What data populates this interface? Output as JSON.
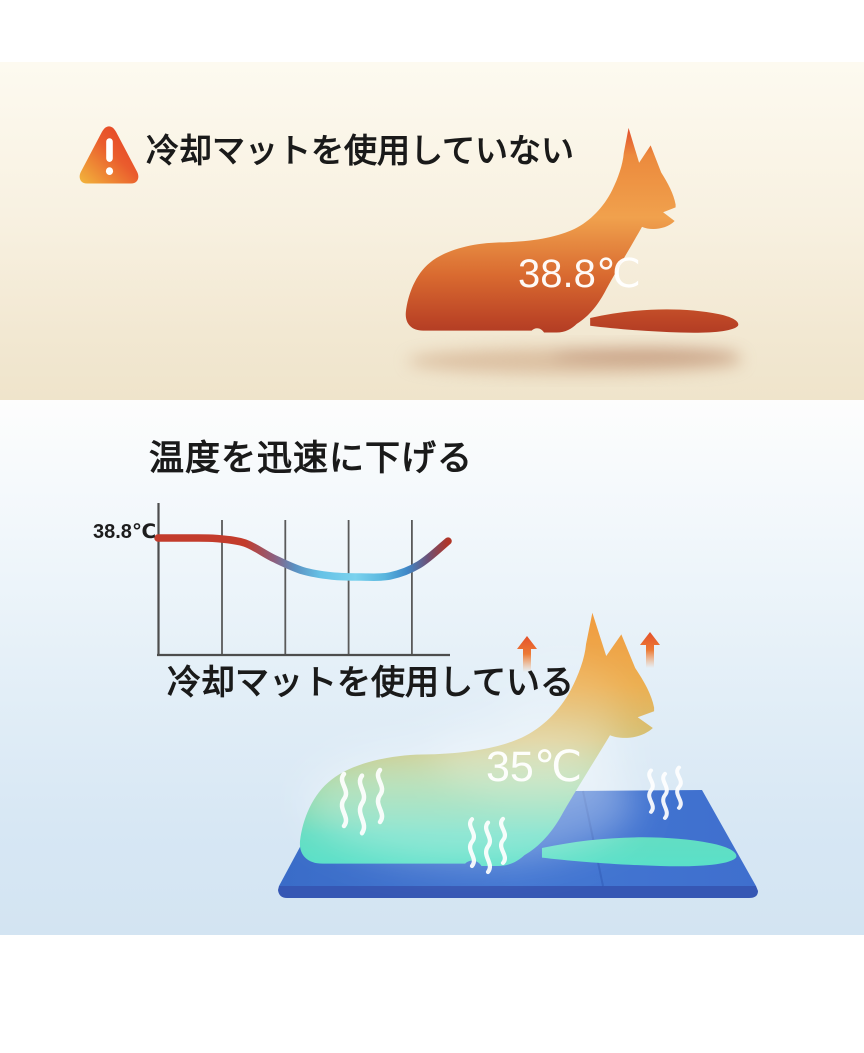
{
  "page": {
    "background": "#ffffff"
  },
  "top_section": {
    "label": "冷却マットを使用していない",
    "dog_temperature": "38.8℃",
    "background_gradient": [
      "#fdfaf0",
      "#efe4cb"
    ],
    "warning_icon": {
      "glyph": "!",
      "colors": [
        "#f2b63c",
        "#e33d24"
      ]
    },
    "dog_gradient": [
      "#e0462b",
      "#ec8a3d",
      "#f0a14d",
      "#a83322"
    ]
  },
  "bottom_section": {
    "title": "温度を迅速に下げる",
    "label": "冷却マットを使用している",
    "dog_temperature": "35℃",
    "background_gradient": [
      "#fdfdfd",
      "#d3e4f2"
    ],
    "dog_gradient": [
      "#f19a3e",
      "#d3c176",
      "#55e2cc"
    ],
    "mat_color": "#4274d0",
    "steam_color": "#ffffff",
    "heat_arrow_color": "#e4512a"
  },
  "chart_data": {
    "type": "line",
    "title": "温度を迅速に下げる",
    "y_axis_annotation": "38.8℃",
    "x": [
      0,
      1,
      2,
      3,
      4,
      5,
      6,
      7,
      8,
      9,
      10
    ],
    "values": [
      38.8,
      38.8,
      38.75,
      38.3,
      36.8,
      35.6,
      35.1,
      35.0,
      35.1,
      36.2,
      38.5
    ],
    "xlabel": "",
    "ylabel": "",
    "gridlines": true,
    "gridline_count": 4,
    "axis_color": "#4d4d4d",
    "line_gradient": [
      "#c33c2c",
      "#8d5f7e",
      "#66c2e6",
      "#7bd2ee",
      "#3f87c7",
      "#b13527"
    ]
  }
}
